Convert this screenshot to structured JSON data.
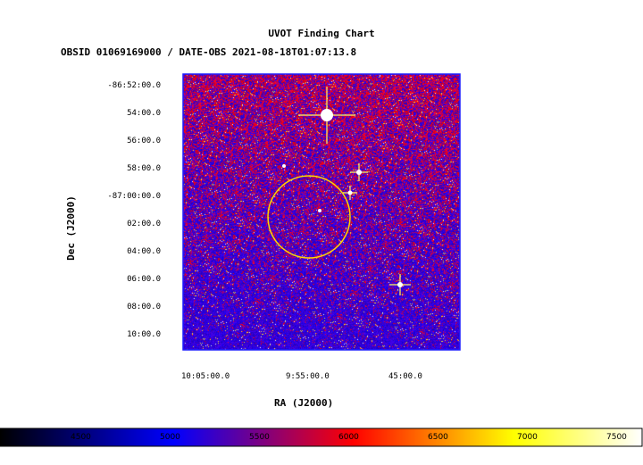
{
  "chart_data": {
    "type": "heatmap",
    "title": "UVOT Finding Chart",
    "subtitle": "OBSID 01069169000 / DATE-OBS 2021-08-18T01:07:13.8",
    "xlabel": "RA (J2000)",
    "ylabel": "Dec (J2000)",
    "x_ticks": [
      "10:05:00.0",
      "9:55:00.0",
      "45:00.0"
    ],
    "y_ticks": [
      "-86:52:00.0",
      "54:00.0",
      "56:00.0",
      "58:00.0",
      "-87:00:00.0",
      "02:00.0",
      "04:00.0",
      "06:00.0",
      "08:00.0",
      "10:00.0"
    ],
    "colorbar": {
      "ticks": [
        "4500",
        "5000",
        "5500",
        "6000",
        "6500",
        "7000",
        "7500"
      ],
      "range": [
        4050,
        7650
      ],
      "colormap": [
        "#000000",
        "#0000ff",
        "#ff0000",
        "#ffff00",
        "#ffffff"
      ]
    },
    "circle_color": "#ffd700",
    "frame_color": "#1a1aff"
  }
}
